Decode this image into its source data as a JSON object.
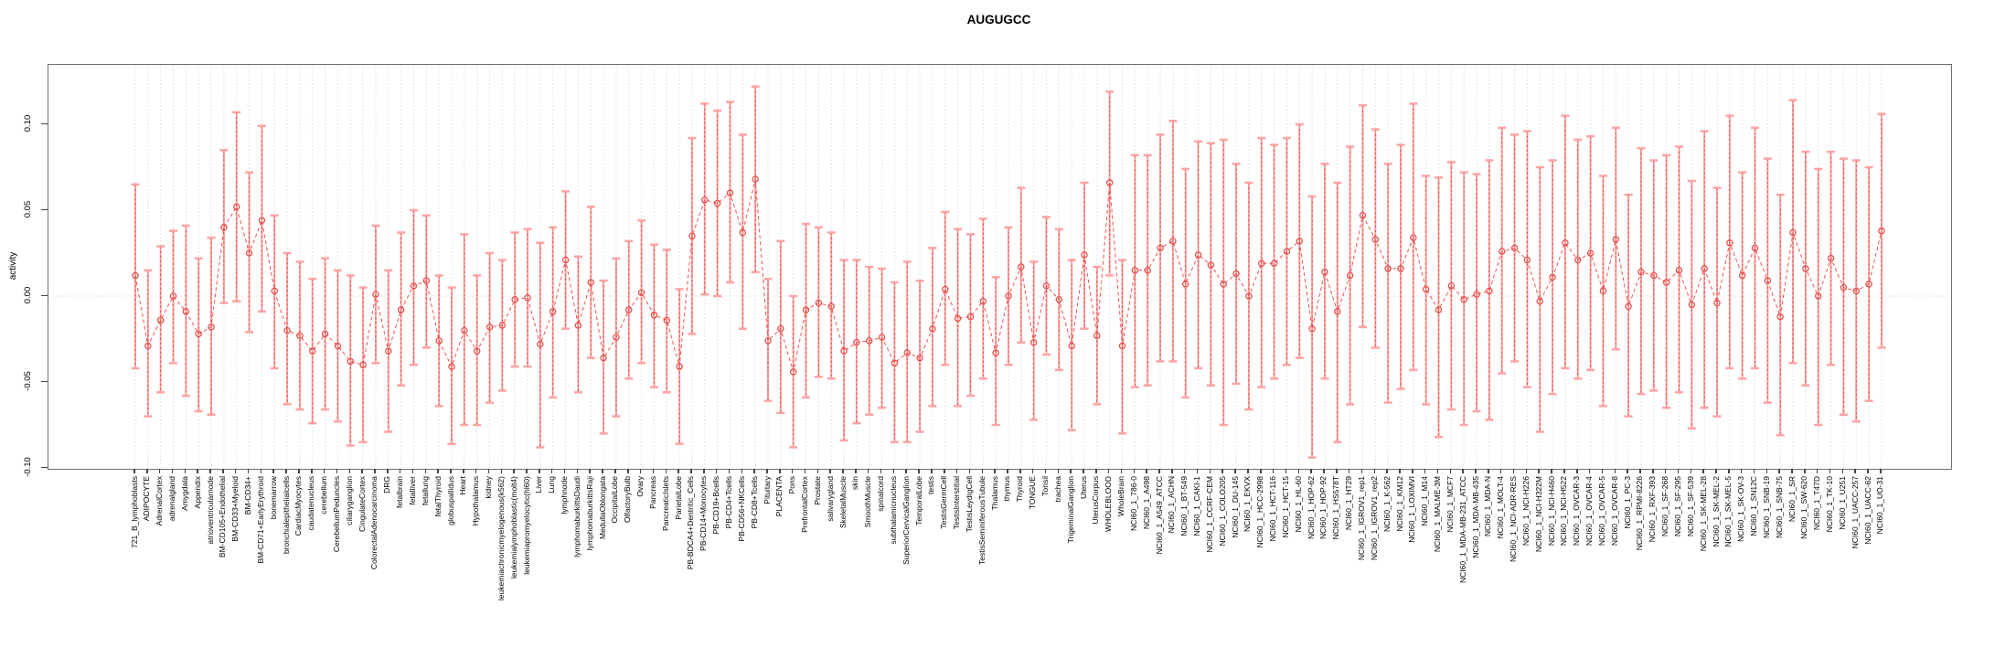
{
  "chart_data": {
    "type": "line",
    "title": "AUGUGCC",
    "xlabel": "",
    "ylabel": "activity",
    "ylim": [
      -0.105,
      0.135
    ],
    "yticks": [
      0.1,
      0.05,
      0.0,
      -0.05,
      -0.1
    ],
    "grid": "light dotted vertical line at every category; dotted horizontal line at y=0",
    "legend_position": "none",
    "marker": "open-circle",
    "line_style": "dashed connector with error bars (caps)",
    "colors": {
      "point": "#e4524d",
      "connector": "#ef5350",
      "error_bar": "#ffa3a3",
      "error_dash": "#e4524d",
      "grid": "#dcdcdc",
      "axis": "#6e6e6e",
      "text": "#000000"
    },
    "categories": [
      "721_B_lymphoblasts",
      "ADIPOCYTE",
      "AdrenalCortex",
      "adrenalgland",
      "Amygdala",
      "Appendix",
      "atrioventricularnode",
      "BM-CD105+Endothelial",
      "BM-CD33+Myeloid",
      "BM-CD34+",
      "BM-CD71+EarlyErythroid",
      "bonemarrow",
      "bronchialepithelialcells",
      "CardiacMyocytes",
      "caudatenucleus",
      "cerebellum",
      "CerebellumPeduncles",
      "ciliaryganglion",
      "CingulateCortex",
      "ColorectalAdenocarcinoma",
      "DRG",
      "fetalbrain",
      "fetalliver",
      "fetallung",
      "fetalThyroid",
      "globuspallidus",
      "Heart",
      "Hypothalamus",
      "kidney",
      "leukemiachronicmyelogenous(k562)",
      "leukemialymphoblastic(molt4)",
      "leukemiapromyelocytic(hl60)",
      "Liver",
      "Lung",
      "lymphnode",
      "lymphomaburkittsDaudi",
      "lymphomaburkittsRaji",
      "MedullaOblongata",
      "OccipitalLobe",
      "OlfactoryBulb",
      "Ovary",
      "Pancreas",
      "PancreaticIslets",
      "ParietalLobe",
      "PB-BDCA4+Dentritic_Cells",
      "PB-CD14+Monocytes",
      "PB-CD19+Bcells",
      "PB-CD4+Tcells",
      "PB-CD56+NKCells",
      "PB-CD8+Tcells",
      "Pituitary",
      "PLACENTA",
      "Pons",
      "PrefrontalCortex",
      "Prostate",
      "salivarygland",
      "SkeletalMuscle",
      "skin",
      "SmoothMuscle",
      "spinalcord",
      "subthalamicnucleus",
      "SuperiorCervicalGanglion",
      "TemporalLobe",
      "testis",
      "TestisGermCell",
      "TestisInterstitial",
      "TestisLeydigCell",
      "TestisSeminiferousTubule",
      "Thalamus",
      "thymus",
      "Thyroid",
      "TONGUE",
      "Tonsil",
      "trachea",
      "TrigeminalGanglion",
      "Uterus",
      "UterusCorpus",
      "WHOLEBLOOD",
      "WholeBrain",
      "NCI60_1_786-0",
      "NCI60_1_A498",
      "NCI60_1_A549_ATCC",
      "NCI60_1_ACHN",
      "NCI60_1_BT-549",
      "NCI60_1_CAKI-1",
      "NCI60_1_CCRF-CEM",
      "NCI60_1_COLO205",
      "NCI60_1_DU-145",
      "NCI60_1_EKVX",
      "NCI60_1_HCC-2998",
      "NCI60_1_HCT-116",
      "NCI60_1_HCT-15",
      "NCI60_1_HL-60",
      "NCI60_1_HOP-62",
      "NCI60_1_HOP-92",
      "NCI60_1_HS578T",
      "NCI60_1_HT29",
      "NCI60_1_IGROV1_rep1",
      "NCI60_1_IGROV1_rep2",
      "NCI60_1_K-562",
      "NCI60_1_KM12",
      "NCI60_1_LOXIMVI",
      "NCI60_1_M14",
      "NCI60_1_MALME-3M",
      "NCI60_1_MCF7",
      "NCI60_1_MDA-MB-231_ATCC",
      "NCI60_1_MDA-MB-435",
      "NCI60_1_MDA-N",
      "NCI60_1_MOLT-4",
      "NCI60_1_NCI-ADR-RES",
      "NCI60_1_NCI-H226",
      "NCI60_1_NCI-H322M",
      "NCI60_1_NCI-H460",
      "NCI60_1_NCI-H522",
      "NCI60_1_OVCAR-3",
      "NCI60_1_OVCAR-4",
      "NCI60_1_OVCAR-5",
      "NCI60_1_OVCAR-8",
      "NCI60_1_PC-3",
      "NCI60_1_RPMI-8226",
      "NCI60_1_RXF-393",
      "NCI60_1_SF-268",
      "NCI60_1_SF-295",
      "NCI60_1_SF-539",
      "NCI60_1_SK-MEL-28",
      "NCI60_1_SK-MEL-2",
      "NCI60_1_SK-MEL-5",
      "NCI60_1_SK-OV-3",
      "NCI60_1_SN12C",
      "NCI60_1_SNB-19",
      "NCI60_1_SNB-75",
      "NCI60_1_SR",
      "NCI60_1_SW-620",
      "NCI60_1_T47D",
      "NCI60_1_TK-10",
      "NCI60_1_U251",
      "NCI60_1_UACC-257",
      "NCI60_1_UACC-62",
      "NCI60_1_UO-31"
    ],
    "series": [
      {
        "name": "activity",
        "values": [
          0.012,
          -0.029,
          -0.014,
          0.0,
          -0.009,
          -0.022,
          -0.018,
          0.04,
          0.052,
          0.025,
          0.044,
          0.003,
          -0.02,
          -0.023,
          -0.032,
          -0.022,
          -0.029,
          -0.038,
          -0.04,
          0.001,
          -0.032,
          -0.008,
          0.006,
          0.009,
          -0.026,
          -0.041,
          -0.02,
          -0.032,
          -0.018,
          -0.017,
          -0.002,
          -0.001,
          -0.028,
          -0.009,
          0.021,
          -0.017,
          0.008,
          -0.036,
          -0.024,
          -0.008,
          0.002,
          -0.011,
          -0.014,
          -0.041,
          0.035,
          0.056,
          0.054,
          0.06,
          0.037,
          0.068,
          -0.026,
          -0.019,
          -0.044,
          -0.008,
          -0.004,
          -0.006,
          -0.032,
          -0.027,
          -0.026,
          -0.024,
          -0.039,
          -0.033,
          -0.036,
          -0.019,
          0.004,
          -0.013,
          -0.012,
          -0.003,
          -0.033,
          0.0,
          0.017,
          -0.027,
          0.006,
          -0.002,
          -0.029,
          0.024,
          -0.023,
          0.066,
          -0.029,
          0.015,
          0.015,
          0.028,
          0.032,
          0.007,
          0.024,
          0.018,
          0.007,
          0.013,
          0.0,
          0.019,
          0.019,
          0.026,
          0.032,
          -0.019,
          0.014,
          -0.009,
          0.012,
          0.047,
          0.033,
          0.016,
          0.016,
          0.034,
          0.004,
          -0.008,
          0.006,
          -0.002,
          0.001,
          0.003,
          0.026,
          0.028,
          0.021,
          -0.003,
          0.011,
          0.031,
          0.021,
          0.025,
          0.003,
          0.033,
          -0.006,
          0.014,
          0.012,
          0.008,
          0.015,
          -0.005,
          0.016,
          -0.004,
          0.031,
          0.012,
          0.028,
          0.009,
          -0.012,
          0.037,
          0.016,
          0.0,
          0.022,
          0.005,
          0.003,
          0.007,
          0.038
        ]
      },
      {
        "name": "upper",
        "values": [
          0.065,
          0.015,
          0.029,
          0.038,
          0.041,
          0.022,
          0.034,
          0.085,
          0.107,
          0.072,
          0.099,
          0.047,
          0.025,
          0.02,
          0.01,
          0.022,
          0.015,
          0.012,
          0.005,
          0.041,
          0.015,
          0.037,
          0.05,
          0.047,
          0.012,
          0.005,
          0.036,
          0.012,
          0.025,
          0.021,
          0.037,
          0.039,
          0.031,
          0.04,
          0.061,
          0.023,
          0.052,
          0.009,
          0.022,
          0.032,
          0.044,
          0.03,
          0.027,
          0.004,
          0.092,
          0.112,
          0.108,
          0.113,
          0.094,
          0.122,
          0.01,
          0.032,
          0.0,
          0.042,
          0.04,
          0.037,
          0.021,
          0.021,
          0.017,
          0.016,
          0.008,
          0.02,
          0.009,
          0.028,
          0.049,
          0.039,
          0.036,
          0.045,
          0.011,
          0.04,
          0.063,
          0.02,
          0.046,
          0.039,
          0.021,
          0.066,
          0.017,
          0.119,
          0.021,
          0.082,
          0.082,
          0.094,
          0.102,
          0.074,
          0.09,
          0.089,
          0.091,
          0.077,
          0.066,
          0.092,
          0.088,
          0.092,
          0.1,
          0.058,
          0.077,
          0.066,
          0.087,
          0.111,
          0.097,
          0.077,
          0.088,
          0.112,
          0.07,
          0.069,
          0.078,
          0.072,
          0.071,
          0.079,
          0.098,
          0.094,
          0.096,
          0.075,
          0.079,
          0.105,
          0.091,
          0.093,
          0.07,
          0.098,
          0.059,
          0.086,
          0.079,
          0.082,
          0.087,
          0.067,
          0.096,
          0.063,
          0.105,
          0.072,
          0.098,
          0.08,
          0.059,
          0.114,
          0.084,
          0.074,
          0.084,
          0.08,
          0.079,
          0.075,
          0.106
        ]
      },
      {
        "name": "lower",
        "values": [
          -0.042,
          -0.07,
          -0.056,
          -0.039,
          -0.058,
          -0.067,
          -0.069,
          -0.004,
          -0.003,
          -0.021,
          -0.009,
          -0.042,
          -0.063,
          -0.066,
          -0.074,
          -0.066,
          -0.073,
          -0.087,
          -0.085,
          -0.039,
          -0.079,
          -0.052,
          -0.04,
          -0.03,
          -0.064,
          -0.086,
          -0.075,
          -0.075,
          -0.062,
          -0.055,
          -0.041,
          -0.041,
          -0.088,
          -0.059,
          -0.019,
          -0.056,
          -0.036,
          -0.08,
          -0.07,
          -0.048,
          -0.039,
          -0.053,
          -0.056,
          -0.086,
          -0.022,
          0.001,
          0.0,
          0.008,
          -0.019,
          0.014,
          -0.061,
          -0.068,
          -0.088,
          -0.059,
          -0.047,
          -0.048,
          -0.084,
          -0.074,
          -0.069,
          -0.065,
          -0.085,
          -0.085,
          -0.079,
          -0.064,
          -0.04,
          -0.064,
          -0.058,
          -0.048,
          -0.075,
          -0.04,
          -0.027,
          -0.072,
          -0.034,
          -0.043,
          -0.078,
          -0.019,
          -0.063,
          0.012,
          -0.08,
          -0.053,
          -0.052,
          -0.038,
          -0.038,
          -0.059,
          -0.042,
          -0.052,
          -0.075,
          -0.051,
          -0.066,
          -0.053,
          -0.048,
          -0.04,
          -0.036,
          -0.094,
          -0.048,
          -0.085,
          -0.063,
          -0.018,
          -0.03,
          -0.062,
          -0.054,
          -0.043,
          -0.063,
          -0.082,
          -0.066,
          -0.075,
          -0.067,
          -0.072,
          -0.045,
          -0.038,
          -0.053,
          -0.079,
          -0.057,
          -0.042,
          -0.048,
          -0.043,
          -0.064,
          -0.031,
          -0.07,
          -0.057,
          -0.055,
          -0.065,
          -0.056,
          -0.077,
          -0.065,
          -0.07,
          -0.042,
          -0.048,
          -0.042,
          -0.062,
          -0.081,
          -0.039,
          -0.052,
          -0.075,
          -0.04,
          -0.069,
          -0.073,
          -0.061,
          -0.03
        ]
      }
    ]
  }
}
